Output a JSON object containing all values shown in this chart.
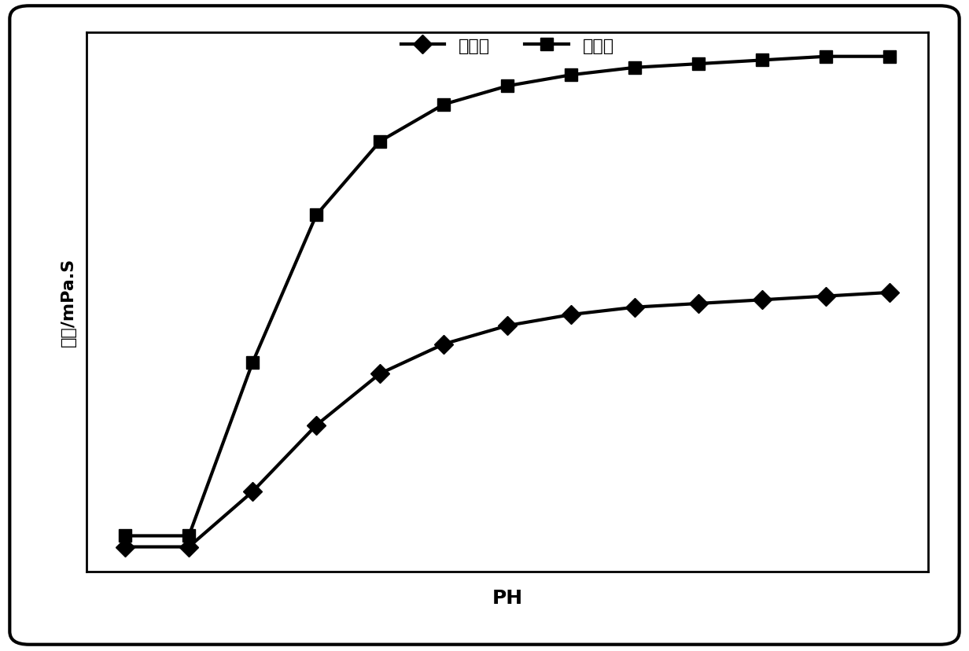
{
  "x_yijia": [
    1,
    2,
    3,
    4,
    5,
    6,
    7,
    8,
    9,
    10,
    11,
    12,
    13
  ],
  "y_yijia": [
    5,
    5,
    20,
    38,
    52,
    60,
    65,
    68,
    70,
    71,
    72,
    73,
    74
  ],
  "x_erjia": [
    1,
    2,
    3,
    4,
    5,
    6,
    7,
    8,
    9,
    10,
    11,
    12,
    13
  ],
  "y_erjia": [
    8,
    8,
    55,
    95,
    115,
    125,
    130,
    133,
    135,
    136,
    137,
    138,
    138
  ],
  "label_yijia": "一价盐",
  "label_erjia": "二价盐",
  "xlabel": "PH",
  "ylabel": "粘度/mPa.S",
  "line_color": "#000000",
  "background_color": "#ffffff",
  "border_color": "#000000",
  "marker_yijia": "D",
  "marker_erjia": "s",
  "linewidth": 3,
  "markersize": 12,
  "xlabel_fontsize": 18,
  "ylabel_fontsize": 16,
  "legend_fontsize": 16,
  "tick_fontsize": 12,
  "figsize": [
    12.32,
    8.29
  ],
  "dpi": 100
}
